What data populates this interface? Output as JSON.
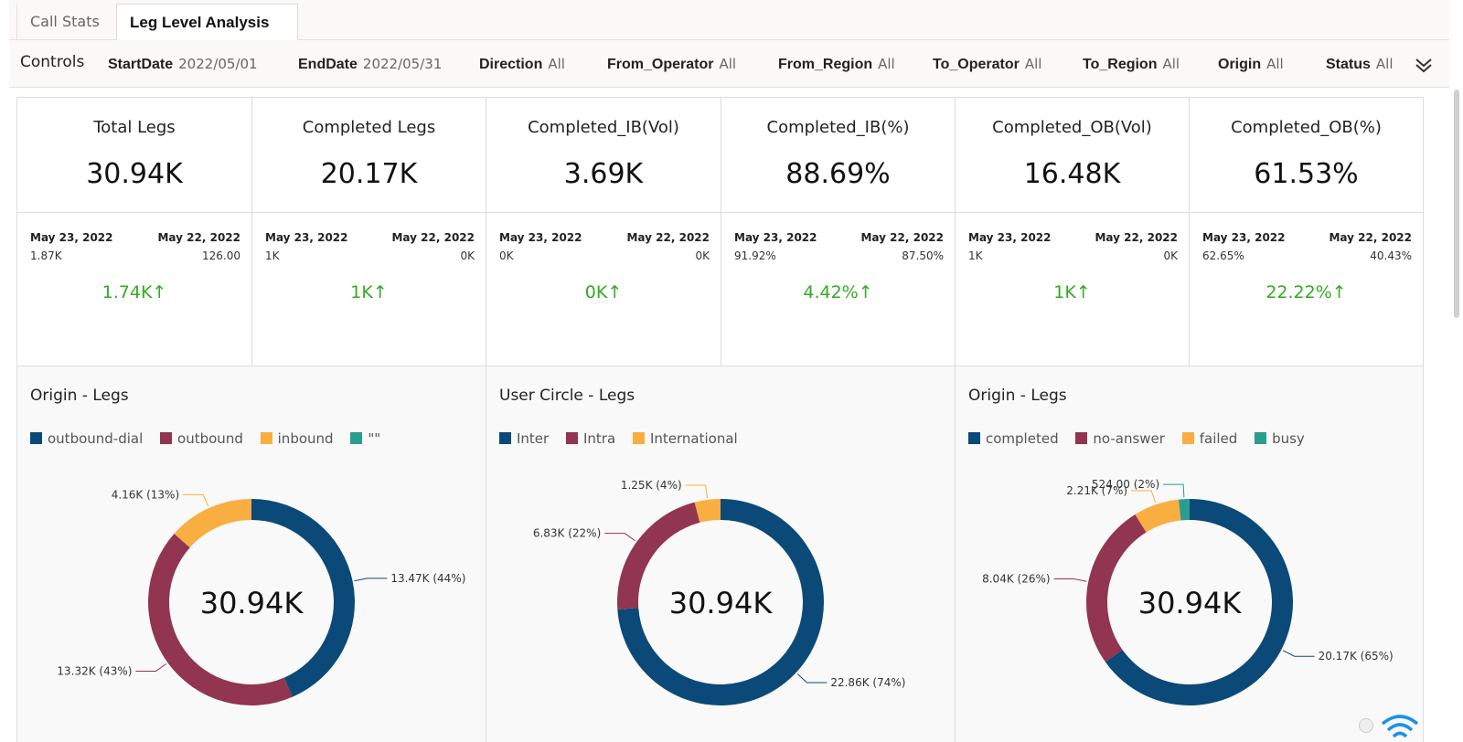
{
  "tabs": [
    {
      "label": "Call Stats"
    },
    {
      "label": "Leg Level Analysis"
    }
  ],
  "controls": {
    "title": "Controls",
    "filters": [
      {
        "key": "StartDate",
        "value": "2022/05/01"
      },
      {
        "key": "EndDate",
        "value": "2022/05/31"
      },
      {
        "key": "Direction",
        "value": "All"
      },
      {
        "key": "From_Operator",
        "value": "All"
      },
      {
        "key": "From_Region",
        "value": "All"
      },
      {
        "key": "To_Operator",
        "value": "All"
      },
      {
        "key": "To_Region",
        "value": "All"
      },
      {
        "key": "Origin",
        "value": "All"
      },
      {
        "key": "Status",
        "value": "All"
      }
    ],
    "expand_icon": "chevron-down-icon"
  },
  "kpis": [
    {
      "title": "Total Legs",
      "value": "30.94K",
      "date1": "May 23, 2022",
      "date2": "May 22, 2022",
      "val1": "1.87K",
      "val2": "126.00",
      "change": "1.74K↑"
    },
    {
      "title": "Completed Legs",
      "value": "20.17K",
      "date1": "May 23, 2022",
      "date2": "May 22, 2022",
      "val1": "1K",
      "val2": "0K",
      "change": "1K↑"
    },
    {
      "title": "Completed_IB(Vol)",
      "value": "3.69K",
      "date1": "May 23, 2022",
      "date2": "May 22, 2022",
      "val1": "0K",
      "val2": "0K",
      "change": "0K↑"
    },
    {
      "title": "Completed_IB(%)",
      "value": "88.69%",
      "date1": "May 23, 2022",
      "date2": "May 22, 2022",
      "val1": "91.92%",
      "val2": "87.50%",
      "change": "4.42%↑"
    },
    {
      "title": "Completed_OB(Vol)",
      "value": "16.48K",
      "date1": "May 23, 2022",
      "date2": "May 22, 2022",
      "val1": "1K",
      "val2": "0K",
      "change": "1K↑"
    },
    {
      "title": "Completed_OB(%)",
      "value": "61.53%",
      "date1": "May 23, 2022",
      "date2": "May 22, 2022",
      "val1": "62.65%",
      "val2": "40.43%",
      "change": "22.22%↑"
    }
  ],
  "colors": {
    "navy": "#0b4a78",
    "maroon": "#913550",
    "orange": "#f9ae42",
    "teal": "#2a9d8f",
    "increase_green": "#33aa22"
  },
  "chart_data": [
    {
      "type": "pie",
      "title": "Origin - Legs",
      "center_label": "30.94K",
      "slices": [
        {
          "name": "outbound-dial",
          "value": 13470,
          "label": "13.47K (44%)",
          "color": "#0b4a78"
        },
        {
          "name": "outbound",
          "value": 13320,
          "label": "13.32K (43%)",
          "color": "#913550"
        },
        {
          "name": "inbound",
          "value": 4160,
          "label": "4.16K (13%)",
          "color": "#f9ae42"
        },
        {
          "name": "\"\"",
          "value": 0,
          "label": "",
          "color": "#2a9d8f"
        }
      ]
    },
    {
      "type": "pie",
      "title": "User Circle - Legs",
      "center_label": "30.94K",
      "slices": [
        {
          "name": "Inter",
          "value": 22860,
          "label": "22.86K (74%)",
          "color": "#0b4a78"
        },
        {
          "name": "Intra",
          "value": 6830,
          "label": "6.83K (22%)",
          "color": "#913550"
        },
        {
          "name": "International",
          "value": 1250,
          "label": "1.25K (4%)",
          "color": "#f9ae42"
        }
      ]
    },
    {
      "type": "pie",
      "title": "Origin - Legs",
      "center_label": "30.94K",
      "slices": [
        {
          "name": "completed",
          "value": 20170,
          "label": "20.17K (65%)",
          "color": "#0b4a78"
        },
        {
          "name": "no-answer",
          "value": 8040,
          "label": "8.04K (26%)",
          "color": "#913550"
        },
        {
          "name": "failed",
          "value": 2210,
          "label": "2.21K (7%)",
          "color": "#f9ae42"
        },
        {
          "name": "busy",
          "value": 524,
          "label": "524.00 (2%)",
          "color": "#2a9d8f"
        }
      ]
    }
  ]
}
